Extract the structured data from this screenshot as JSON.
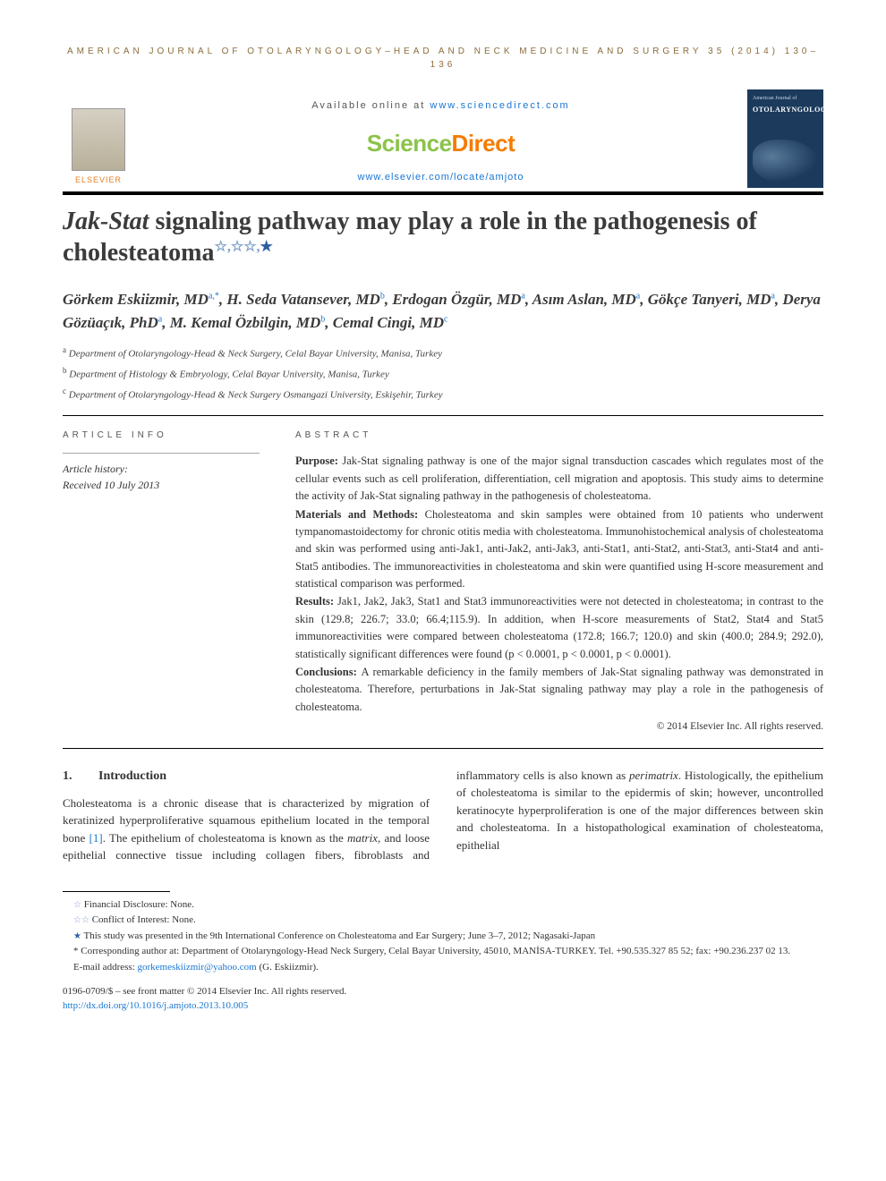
{
  "running_head": "AMERICAN JOURNAL OF OTOLARYNGOLOGY–HEAD AND NECK MEDICINE AND SURGERY 35 (2014) 130–136",
  "masthead": {
    "elsevier": "ELSEVIER",
    "available_prefix": "Available online at ",
    "available_link": "www.sciencedirect.com",
    "sd_brand_a": "Science",
    "sd_brand_b": "Direct",
    "journal_url": "www.elsevier.com/locate/amjoto",
    "cover_label": "American Journal of",
    "cover_title": "OTOLARYNGOLOGY"
  },
  "title_pre": "Jak-Stat",
  "title_rest": " signaling pathway may play a role in the pathogenesis of cholesteatoma",
  "authors": [
    {
      "name": "Görkem Eskiizmir, MD",
      "sup": "a,*"
    },
    {
      "name": "H. Seda Vatansever, MD",
      "sup": "b"
    },
    {
      "name": "Erdogan Özgür, MD",
      "sup": "a"
    },
    {
      "name": "Asım Aslan, MD",
      "sup": "a"
    },
    {
      "name": "Gökçe Tanyeri, MD",
      "sup": "a"
    },
    {
      "name": "Derya Gözüaçık, PhD",
      "sup": "a"
    },
    {
      "name": "M. Kemal Özbilgin, MD",
      "sup": "b"
    },
    {
      "name": "Cemal Cingi, MD",
      "sup": "c"
    }
  ],
  "affiliations": [
    {
      "sup": "a",
      "text": "Department of Otolaryngology-Head & Neck Surgery, Celal Bayar University, Manisa, Turkey"
    },
    {
      "sup": "b",
      "text": "Department of Histology & Embryology, Celal Bayar University, Manisa, Turkey"
    },
    {
      "sup": "c",
      "text": "Department of Otolaryngology-Head & Neck Surgery Osmangazi University, Eskişehir, Turkey"
    }
  ],
  "info_label": "ARTICLE INFO",
  "abs_label": "ABSTRACT",
  "history_label": "Article history:",
  "history_received": "Received 10 July 2013",
  "abstract": {
    "purpose_label": "Purpose: ",
    "purpose": "Jak-Stat signaling pathway is one of the major signal transduction cascades which regulates most of the cellular events such as cell proliferation, differentiation, cell migration and apoptosis. This study aims to determine the activity of Jak-Stat signaling pathway in the pathogenesis of cholesteatoma.",
    "methods_label": "Materials and Methods: ",
    "methods": "Cholesteatoma and skin samples were obtained from 10 patients who underwent tympanomastoidectomy for chronic otitis media with cholesteatoma. Immunohistochemical analysis of cholesteatoma and skin was performed using anti-Jak1, anti-Jak2, anti-Jak3, anti-Stat1, anti-Stat2, anti-Stat3, anti-Stat4 and anti-Stat5 antibodies. The immunoreactivities in cholesteatoma and skin were quantified using H-score measurement and statistical comparison was performed.",
    "results_label": "Results: ",
    "results": "Jak1, Jak2, Jak3, Stat1 and Stat3 immunoreactivities were not detected in cholesteatoma; in contrast to the skin (129.8; 226.7; 33.0; 66.4;115.9). In addition, when H-score measurements of Stat2, Stat4 and Stat5 immunoreactivities were compared between cholesteatoma (172.8; 166.7; 120.0) and skin (400.0; 284.9; 292.0), statistically significant differences were found (p < 0.0001, p < 0.0001, p < 0.0001).",
    "conclusions_label": "Conclusions: ",
    "conclusions": "A remarkable deficiency in the family members of Jak-Stat signaling pathway was demonstrated in cholesteatoma. Therefore, perturbations in Jak-Stat signaling pathway may play a role in the pathogenesis of cholesteatoma.",
    "copyright": "© 2014 Elsevier Inc. All rights reserved."
  },
  "intro_heading_num": "1.",
  "intro_heading": "Introduction",
  "intro_col1": "Cholesteatoma is a chronic disease that is characterized by migration of keratinized hyperproliferative squamous epithelium located in the temporal bone [1]. The epithelium of cholesteatoma is known as the matrix, and loose epithelial",
  "intro_col2": "connective tissue including collagen fibers, fibroblasts and inflammatory cells is also known as perimatrix. Histologically, the epithelium of cholesteatoma is similar to the epidermis of skin; however, uncontrolled keratinocyte hyperproliferation is one of the major differences between skin and cholesteatoma. In a histopathological examination of cholesteatoma, epithelial",
  "footnotes": {
    "fn1": "Financial Disclosure: None.",
    "fn2": "Conflict of Interest: None.",
    "fn3": "This study was presented in the 9th International Conference on Cholesteatoma and Ear Surgery; June 3–7, 2012; Nagasaki-Japan",
    "fn4a": "Corresponding author at: Department of Otolaryngology-Head Neck Surgery, Celal Bayar University, 45010, MANİSA-TURKEY. Tel. +90.535.327 85 52; fax: +90.236.237 02 13.",
    "email_label": "E-mail address: ",
    "email": "gorkemeskiizmir@yahoo.com",
    "email_who": " (G. Eskiizmir)."
  },
  "front_matter": {
    "line1": "0196-0709/$ – see front matter © 2014 Elsevier Inc. All rights reserved.",
    "doi": "http://dx.doi.org/10.1016/j.amjoto.2013.10.005"
  },
  "colors": {
    "link": "#1976d2",
    "brand_green": "#8bc34a",
    "brand_orange": "#f57c00",
    "elsevier_orange": "#e67e22",
    "star_outline": "#7e9ec9",
    "star_solid": "#2b5fa3"
  }
}
